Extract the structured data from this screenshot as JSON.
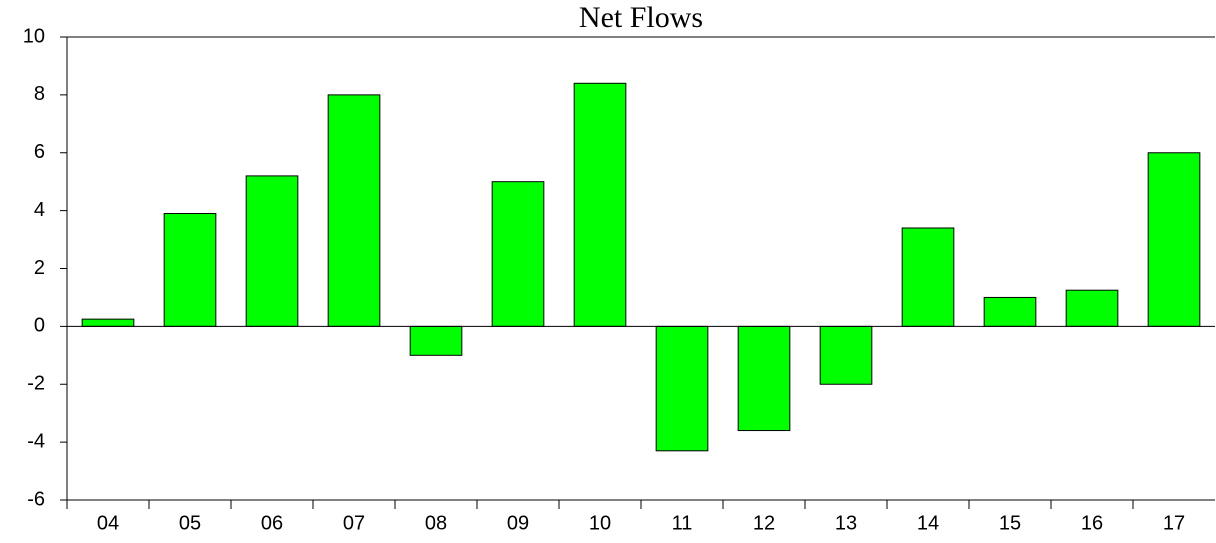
{
  "chart_data": {
    "type": "bar",
    "title": "Net Flows",
    "categories": [
      "04",
      "05",
      "06",
      "07",
      "08",
      "09",
      "10",
      "11",
      "12",
      "13",
      "14",
      "15",
      "16",
      "17"
    ],
    "values": [
      0.25,
      3.9,
      5.2,
      8.0,
      -1.0,
      5.0,
      8.4,
      -4.3,
      -3.6,
      -2.0,
      3.4,
      1.0,
      1.25,
      6.0
    ],
    "color": "#00ff00",
    "ylim": [
      -6,
      10
    ],
    "yticks": [
      -6,
      -4,
      -2,
      0,
      2,
      4,
      6,
      8,
      10
    ],
    "grid": false
  }
}
